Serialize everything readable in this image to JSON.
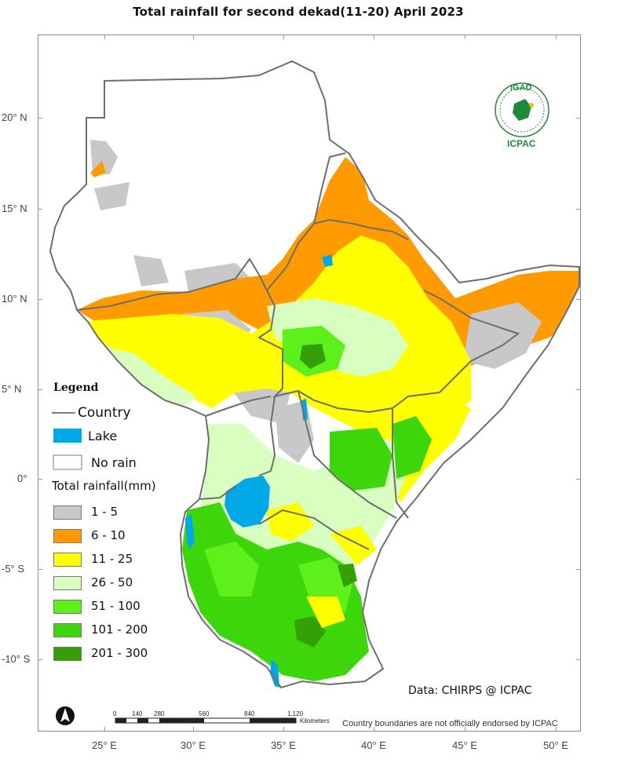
{
  "title": "Total rainfall  for  second dekad(11-20) April 2023",
  "latitude_labels": [
    "20° N",
    "15° N",
    "10° N",
    "5° N",
    "0°",
    "-5° S",
    "-10° S"
  ],
  "longitude_labels": [
    "25° E",
    "30° E",
    "35° E",
    "40° E",
    "45° E",
    "50° E"
  ],
  "legend": {
    "heading": "Legend",
    "country_label": "Country",
    "lake_label": "Lake",
    "no_rain_label": "No rain",
    "rainfall_title": "Total rainfall(mm)",
    "classes": [
      {
        "label": "1 - 5",
        "color": "#c8c8c8"
      },
      {
        "label": "6 - 10",
        "color": "#ff9a00"
      },
      {
        "label": "11 - 25",
        "color": "#ffff00"
      },
      {
        "label": "26 - 50",
        "color": "#d8ffc0"
      },
      {
        "label": "51 - 100",
        "color": "#5ef01a"
      },
      {
        "label": "101 - 200",
        "color": "#3cd60a"
      },
      {
        "label": "201 - 300",
        "color": "#35a006"
      }
    ],
    "lake_color": "#00a8e8",
    "no_rain_color": "#ffffff"
  },
  "source": "Data: CHIRPS @ ICPAC",
  "disclaimer": "Country boundaries are not officially endorsed by ICPAC",
  "scale_bar": {
    "ticks": [
      "0",
      "140",
      "280",
      "560",
      "840",
      "1,120"
    ],
    "unit": "Kilometers"
  },
  "logo": {
    "top_text": "IGAD",
    "bottom_text": "ICPAC",
    "color": "#1e8a3c"
  }
}
